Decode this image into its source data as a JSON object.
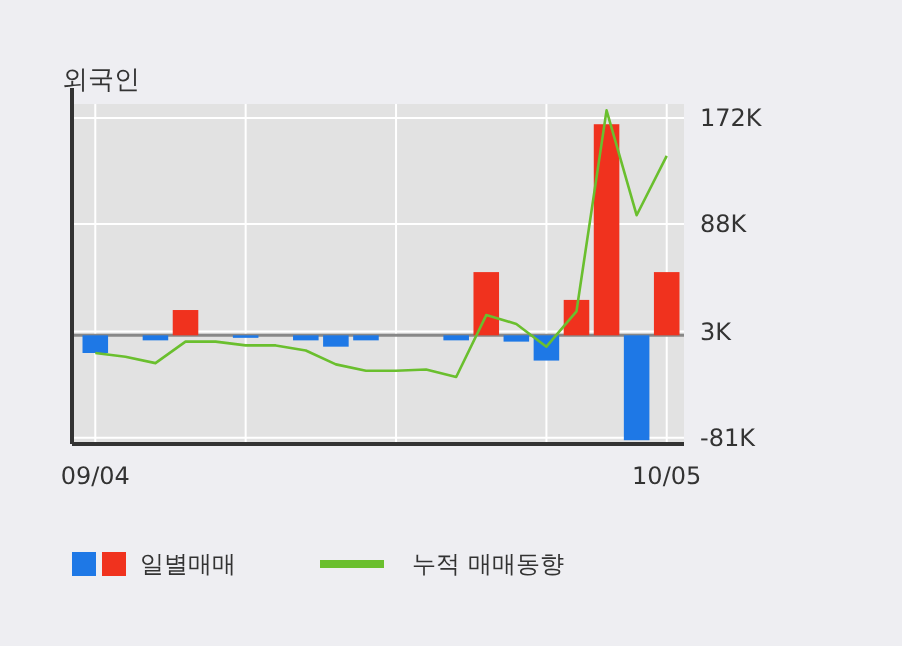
{
  "chart_data": {
    "type": "bar",
    "title": "외국인",
    "categories": [
      "09/04",
      null,
      null,
      null,
      null,
      null,
      null,
      null,
      null,
      null,
      null,
      null,
      null,
      null,
      null,
      null,
      null,
      null,
      null,
      "10/05"
    ],
    "series": [
      {
        "name": "일별매매",
        "colors": [
          "#1e78e6",
          "#1e78e6",
          "#1e78e6",
          "#f0321e",
          "#1e78e6",
          "#1e78e6",
          "#1e78e6",
          "#1e78e6",
          "#1e78e6",
          "#1e78e6",
          "#1e78e6",
          "#1e78e6",
          "#1e78e6",
          "#f0321e",
          "#1e78e6",
          "#1e78e6",
          "#f0321e",
          "#f0321e",
          "#1e78e6",
          "#f0321e"
        ],
        "values": [
          -14,
          0,
          -4,
          20,
          0,
          -2,
          0,
          -4,
          -9,
          -4,
          0,
          0,
          -4,
          50,
          -5,
          -20,
          28,
          167,
          -83,
          50
        ]
      },
      {
        "name": "누적 매매동향",
        "type": "line",
        "color": "#6abf2e",
        "values": [
          -14,
          -17,
          -22,
          -5,
          -5,
          -8,
          -8,
          -12,
          -23,
          -28,
          -28,
          -27,
          -33,
          16,
          9,
          -9,
          19,
          178,
          95,
          142
        ]
      }
    ],
    "ylim": [
      -86,
      183
    ],
    "yticks": [
      {
        "value": 172,
        "label": "172K"
      },
      {
        "value": 88,
        "label": "88K"
      },
      {
        "value": 3,
        "label": "3K"
      },
      {
        "value": -81,
        "label": "-81K"
      }
    ],
    "grid": true,
    "legend": "bottom"
  }
}
